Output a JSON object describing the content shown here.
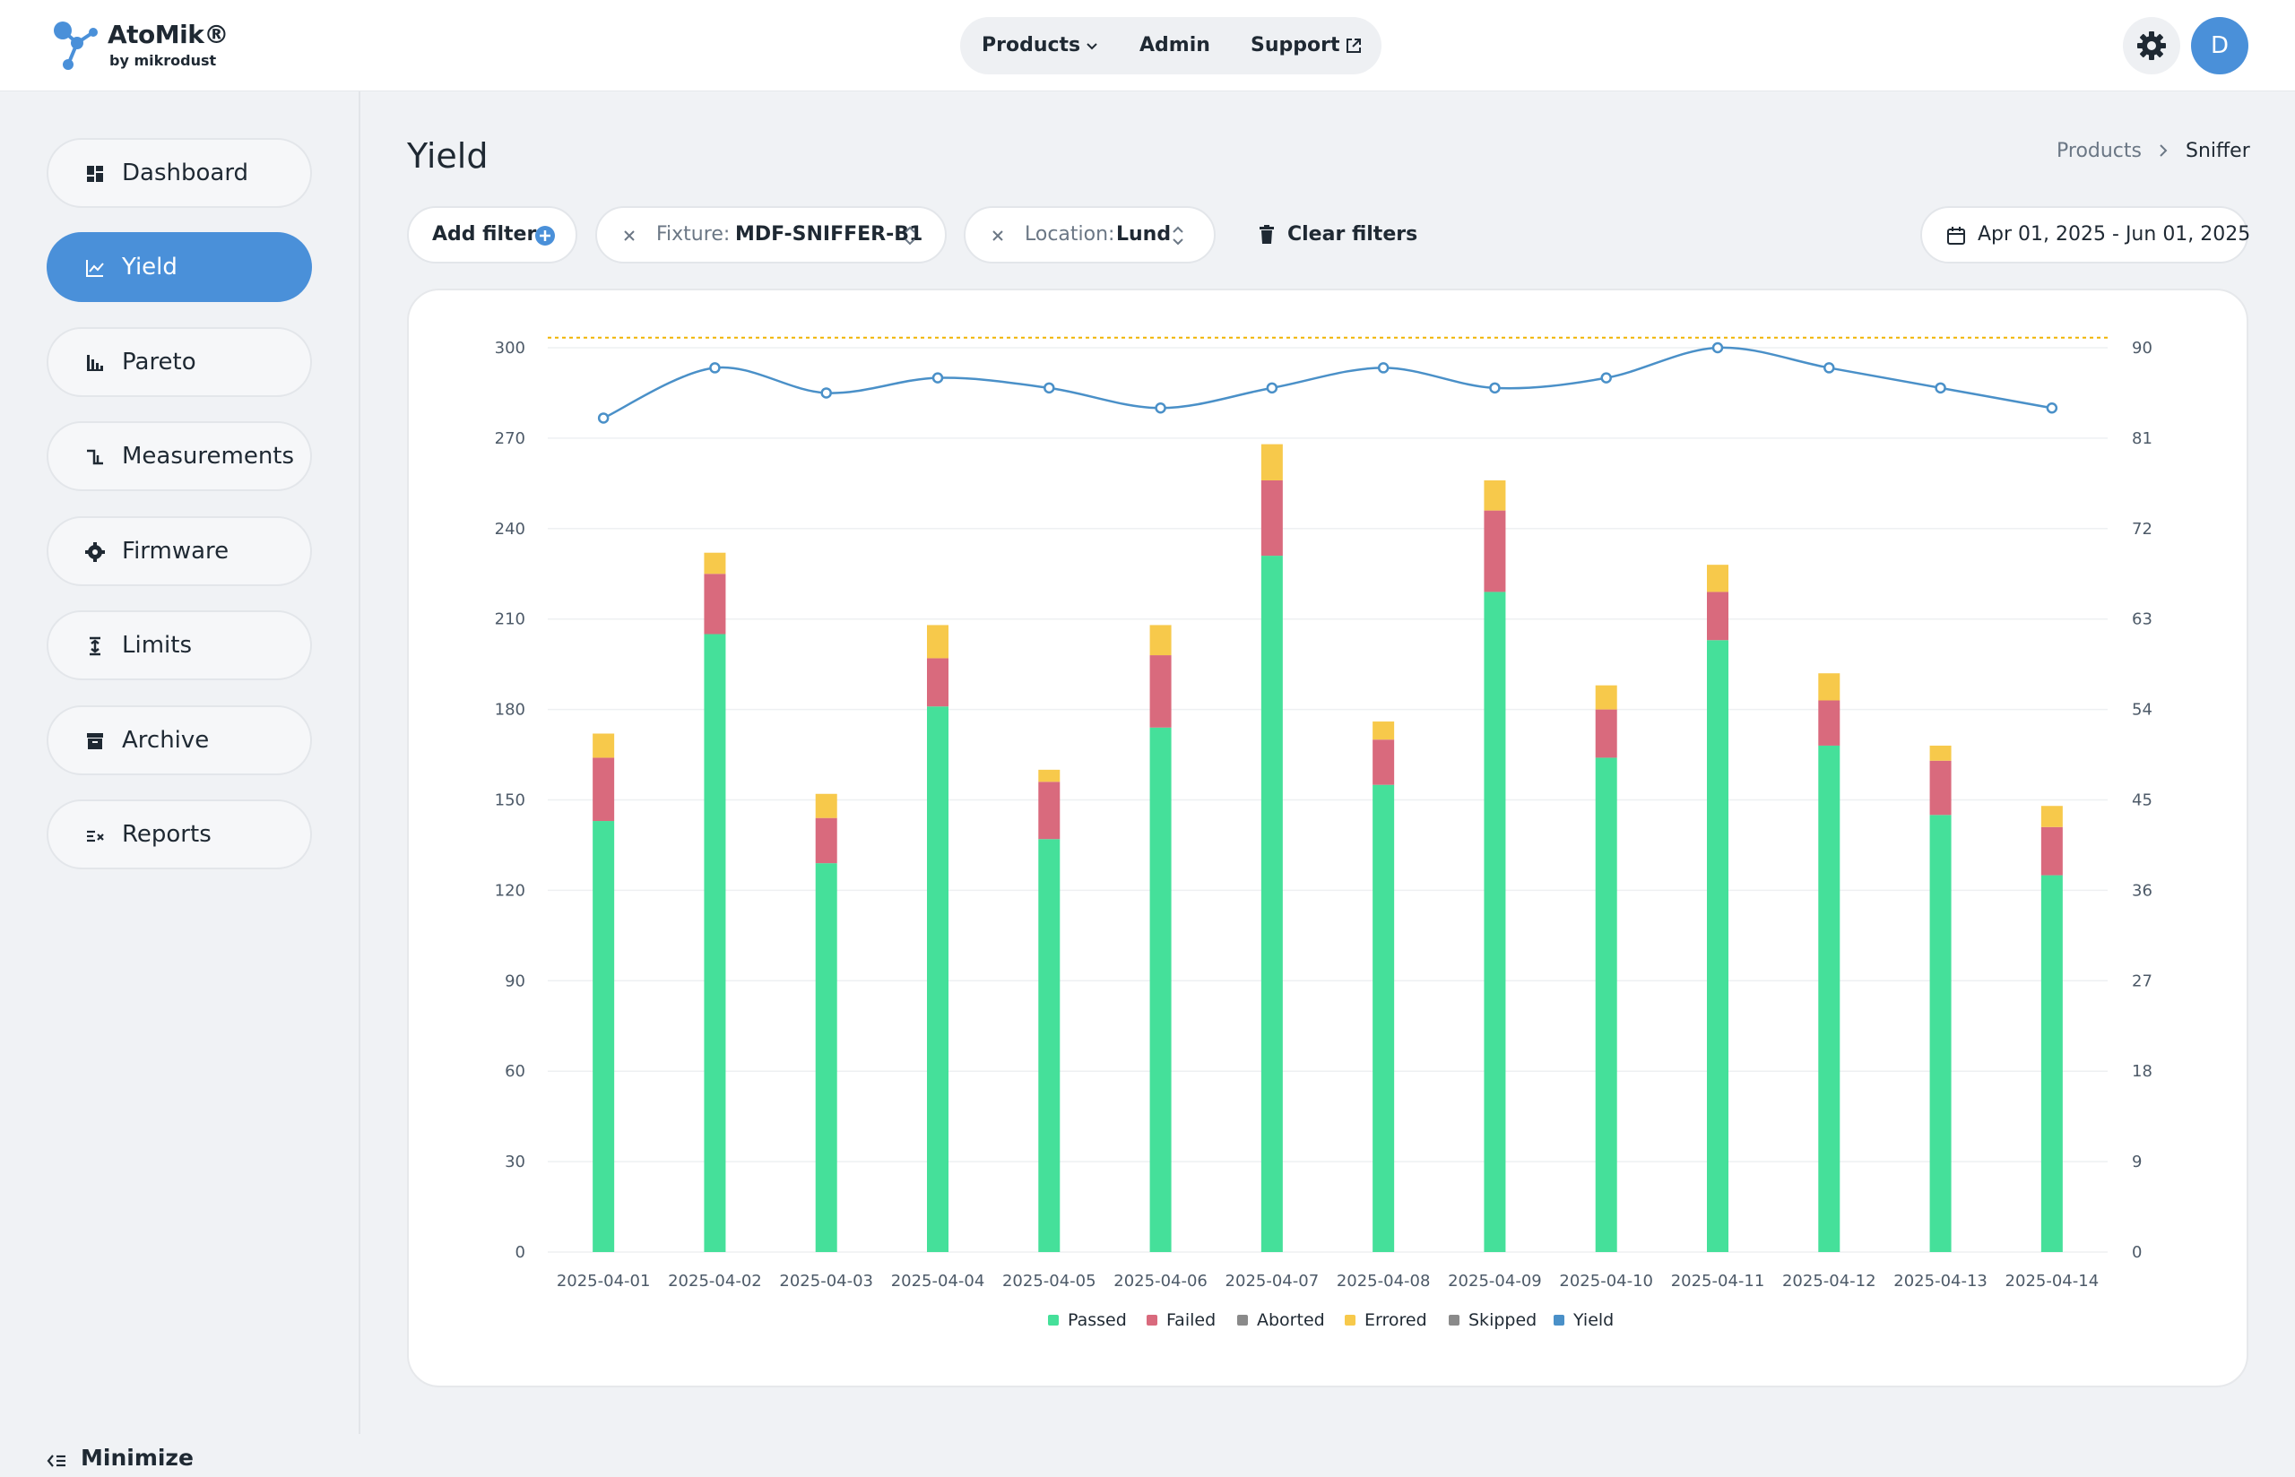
{
  "header": {
    "brand_name": "AtoMik®",
    "brand_sub": "by mikrodust",
    "nav": [
      {
        "label": "Products",
        "icon": "chevron-down-icon"
      },
      {
        "label": "Admin"
      },
      {
        "label": "Support",
        "icon": "external-link-icon"
      }
    ],
    "settings_icon": "gear-icon",
    "avatar_initial": "D"
  },
  "sidebar": {
    "items": [
      {
        "label": "Dashboard",
        "icon": "dashboard-icon",
        "active": false
      },
      {
        "label": "Yield",
        "icon": "line-chart-icon",
        "active": true
      },
      {
        "label": "Pareto",
        "icon": "bar-chart-icon",
        "active": false
      },
      {
        "label": "Measurements",
        "icon": "step-signal-icon",
        "active": false
      },
      {
        "label": "Firmware",
        "icon": "chip-icon",
        "active": false
      },
      {
        "label": "Limits",
        "icon": "limits-icon",
        "active": false
      },
      {
        "label": "Archive",
        "icon": "archive-icon",
        "active": false
      },
      {
        "label": "Reports",
        "icon": "reports-icon",
        "active": false
      }
    ],
    "minimize_label": "Minimize"
  },
  "page": {
    "title": "Yield",
    "breadcrumb": [
      "Products",
      "Sniffer"
    ]
  },
  "filters": {
    "add_label": "Add filter",
    "items": [
      {
        "key": "Fixture:",
        "value": "MDF-SNIFFER-B1"
      },
      {
        "key": "Location:",
        "value": "Lund"
      }
    ],
    "clear_label": "Clear filters",
    "date_range": "Apr 01, 2025 - Jun 01, 2025"
  },
  "colors": {
    "accent": "#4a90d9",
    "passed": "#45e09a",
    "failed": "#d96a7d",
    "aborted": "#8a8a8a",
    "errored": "#f7c94b",
    "skipped": "#8a8a8a",
    "yield": "#4a90c8",
    "target_line": "#f0b400"
  },
  "chart_data": {
    "type": "bar",
    "stacked": true,
    "categories": [
      "2025-04-01",
      "2025-04-02",
      "2025-04-03",
      "2025-04-04",
      "2025-04-05",
      "2025-04-06",
      "2025-04-07",
      "2025-04-08",
      "2025-04-09",
      "2025-04-10",
      "2025-04-11",
      "2025-04-12",
      "2025-04-13",
      "2025-04-14"
    ],
    "series": [
      {
        "name": "Passed",
        "values": [
          143,
          205,
          129,
          181,
          137,
          174,
          231,
          155,
          219,
          164,
          203,
          168,
          145,
          125
        ]
      },
      {
        "name": "Failed",
        "values": [
          21,
          20,
          15,
          16,
          19,
          24,
          25,
          15,
          27,
          16,
          16,
          15,
          18,
          16
        ]
      },
      {
        "name": "Aborted",
        "values": [
          0,
          0,
          0,
          0,
          0,
          0,
          0,
          0,
          0,
          0,
          0,
          0,
          0,
          0
        ]
      },
      {
        "name": "Errored",
        "values": [
          8,
          7,
          8,
          11,
          4,
          10,
          12,
          6,
          10,
          8,
          9,
          9,
          5,
          7
        ]
      },
      {
        "name": "Skipped",
        "values": [
          0,
          0,
          0,
          0,
          0,
          0,
          0,
          0,
          0,
          0,
          0,
          0,
          0,
          0
        ]
      }
    ],
    "line_series": {
      "name": "Yield",
      "axis": "right",
      "values": [
        83,
        88,
        85.5,
        87,
        86,
        84,
        86,
        88,
        86,
        87,
        90,
        88,
        86,
        84
      ]
    },
    "target_line": {
      "axis": "right",
      "value": 91
    },
    "y_left": {
      "ylim": [
        0,
        300
      ],
      "ticks": [
        0,
        30,
        60,
        90,
        120,
        150,
        180,
        210,
        240,
        270,
        300
      ]
    },
    "y_right": {
      "ylim": [
        0,
        90
      ],
      "ticks": [
        0,
        9,
        18,
        27,
        36,
        45,
        54,
        63,
        72,
        81,
        90
      ]
    },
    "legend": [
      "Passed",
      "Failed",
      "Aborted",
      "Errored",
      "Skipped",
      "Yield"
    ],
    "legend_position": "bottom",
    "grid": true
  }
}
